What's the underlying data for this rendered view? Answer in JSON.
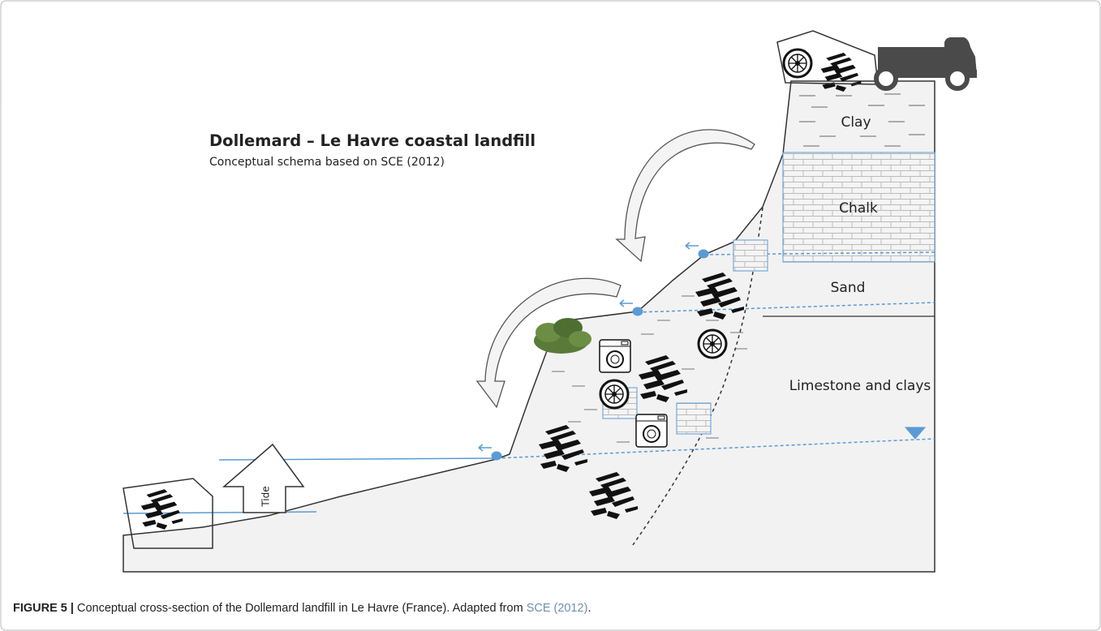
{
  "figure": {
    "title": "Dollemard – Le Havre coastal landfill",
    "subtitle": "Conceptual schema based on SCE (2012)",
    "layers": [
      "Clay",
      "Chalk",
      "Sand",
      "Limestone and clays"
    ],
    "tide": "Tide",
    "caption": {
      "label": "FIGURE 5 |",
      "text": " Conceptual cross-section of the Dollemard landfill in Le Havre (France). Adapted from ",
      "reference": "SCE (2012)",
      "end": "."
    }
  }
}
